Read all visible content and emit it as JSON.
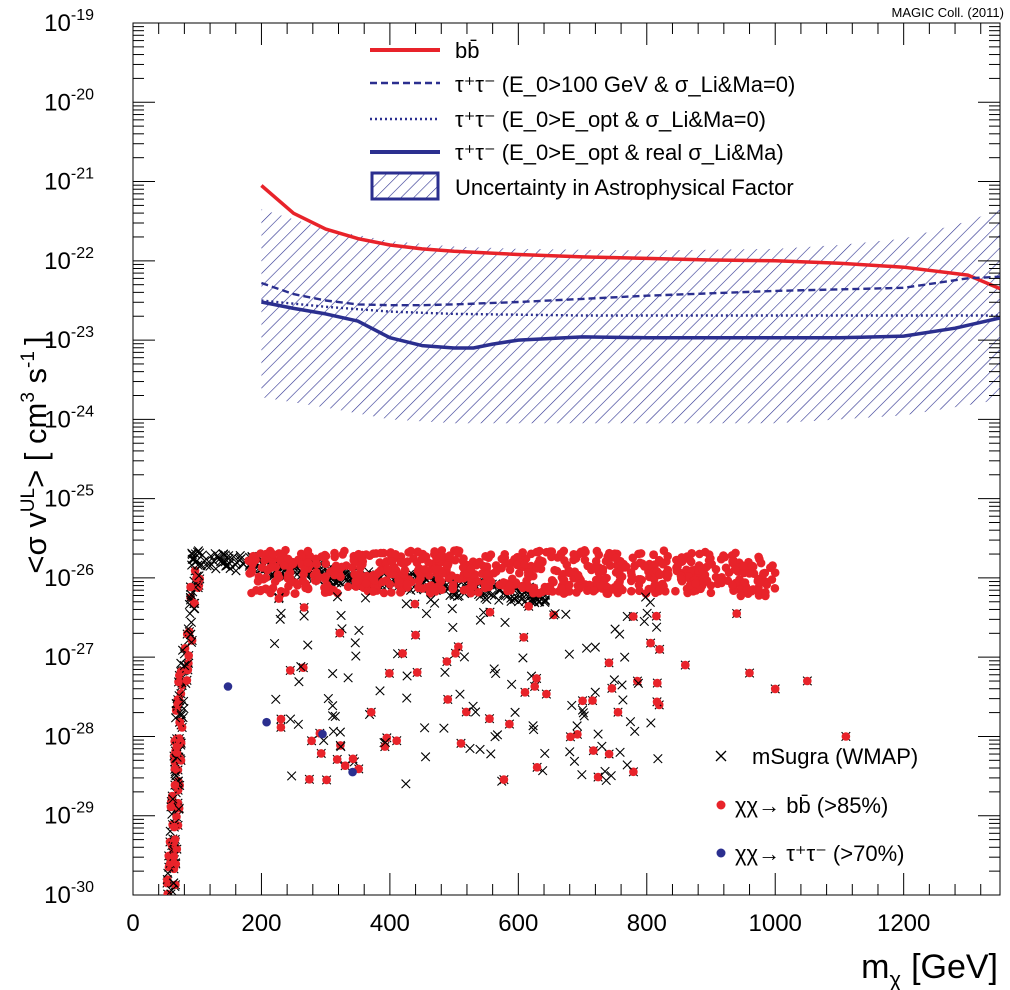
{
  "chart_data": {
    "type": "scatter",
    "corner_label": "MAGIC Coll. (2011)",
    "xlabel": "m",
    "xlabel_sub": "χ",
    "xlabel_unit": "[GeV]",
    "ylabel": "<σ v",
    "ylabel_sup": "UL",
    "ylabel_rest": "> [ cm",
    "ylabel_sup2": "3",
    "ylabel_s": " s",
    "ylabel_sup3": "-1",
    "ylabel_end": "]",
    "xlim": [
      0,
      1350
    ],
    "ylim_log10": [
      -30,
      -19
    ],
    "y_scale": "log",
    "x_ticks": [
      "0",
      "200",
      "400",
      "600",
      "800",
      "1000",
      "1200"
    ],
    "x_tick_values": [
      0,
      200,
      400,
      600,
      800,
      1000,
      1200
    ],
    "y_tick_base": "10",
    "y_tick_exponents": [
      "-30",
      "-29",
      "-28",
      "-27",
      "-26",
      "-25",
      "-24",
      "-23",
      "-22",
      "-21",
      "-20",
      "-19"
    ],
    "lines": [
      {
        "name": "bb̄",
        "style": "solid",
        "color": "#e8232a",
        "x": [
          200,
          250,
          300,
          350,
          400,
          450,
          500,
          550,
          600,
          700,
          800,
          900,
          1000,
          1100,
          1200,
          1300,
          1350
        ],
        "log10y": [
          -21.05,
          -21.4,
          -21.6,
          -21.72,
          -21.8,
          -21.85,
          -21.88,
          -21.9,
          -21.92,
          -21.95,
          -21.97,
          -21.99,
          -22.0,
          -22.03,
          -22.08,
          -22.18,
          -22.35
        ]
      },
      {
        "name": "τ⁺τ⁻ (E_0>100 GeV & σ_Li&Ma=0)",
        "style": "dashed",
        "color": "#2b2f8f",
        "x": [
          200,
          250,
          300,
          350,
          400,
          450,
          500,
          600,
          700,
          800,
          900,
          1000,
          1100,
          1200,
          1300,
          1350
        ],
        "log10y": [
          -22.28,
          -22.42,
          -22.5,
          -22.55,
          -22.56,
          -22.56,
          -22.55,
          -22.52,
          -22.48,
          -22.44,
          -22.41,
          -22.38,
          -22.36,
          -22.34,
          -22.22,
          -22.2
        ]
      },
      {
        "name": "τ⁺τ⁻ (E_0>E_opt & σ_Li&Ma=0)",
        "style": "dotted",
        "color": "#2b2f8f",
        "x": [
          200,
          300,
          400,
          500,
          600,
          700,
          800,
          900,
          1000,
          1100,
          1200,
          1300,
          1350
        ],
        "log10y": [
          -22.5,
          -22.58,
          -22.64,
          -22.67,
          -22.68,
          -22.69,
          -22.69,
          -22.69,
          -22.69,
          -22.69,
          -22.69,
          -22.69,
          -22.69
        ]
      },
      {
        "name": "τ⁺τ⁻ (E_0>E_opt & real σ_Li&Ma)",
        "style": "solid",
        "color": "#2b2f8f",
        "x": [
          200,
          250,
          300,
          350,
          400,
          450,
          500,
          530,
          560,
          600,
          650,
          700,
          800,
          900,
          1000,
          1100,
          1200,
          1280,
          1350
        ],
        "log10y": [
          -22.52,
          -22.6,
          -22.67,
          -22.76,
          -22.97,
          -23.07,
          -23.1,
          -23.1,
          -23.05,
          -23.0,
          -22.98,
          -22.96,
          -22.97,
          -22.97,
          -22.97,
          -22.97,
          -22.95,
          -22.85,
          -22.72
        ]
      }
    ],
    "band": {
      "name": "Uncertainty in Astrophysical Factor",
      "color": "#2b2f8f",
      "x": [
        200,
        300,
        400,
        500,
        600,
        700,
        800,
        900,
        1000,
        1100,
        1200,
        1300,
        1350
      ],
      "log10y_upper": [
        -21.35,
        -21.6,
        -21.75,
        -21.82,
        -21.85,
        -21.86,
        -21.87,
        -21.86,
        -21.85,
        -21.8,
        -21.72,
        -21.5,
        -21.35
      ],
      "log10y_lower": [
        -23.72,
        -23.85,
        -24.0,
        -24.05,
        -24.05,
        -24.05,
        -24.05,
        -24.05,
        -24.05,
        -24.0,
        -23.95,
        -23.82,
        -23.75
      ]
    },
    "scatter_series": [
      {
        "name": "mSugra (WMAP)",
        "marker": "cross",
        "color": "#000000"
      },
      {
        "name": "χχ→ bb̄ (>85%)",
        "marker": "dot",
        "color": "#e8232a"
      },
      {
        "name": "χχ→ τ⁺τ⁻ (>70%)",
        "marker": "dot",
        "color": "#2b2f8f"
      }
    ],
    "tau_points": {
      "x": [
        148,
        208,
        295,
        342
      ],
      "log10y": [
        -27.37,
        -27.82,
        -27.97,
        -28.45
      ]
    },
    "legend_top": {
      "placement": "top-center"
    },
    "legend_bottom": {
      "placement": "bottom-right"
    }
  }
}
